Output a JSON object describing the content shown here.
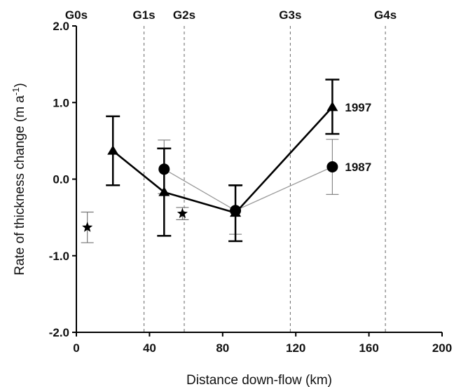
{
  "chart_data": {
    "type": "line",
    "title": "",
    "xlabel": "Distance down-flow (km)",
    "ylabel": "Rate of thickness change (m a",
    "ylabel_superscript": "-1",
    "ylabel_close": ")",
    "xlim": [
      0,
      200
    ],
    "ylim": [
      -2.0,
      2.0
    ],
    "xticks": [
      0,
      40,
      80,
      120,
      160,
      200
    ],
    "xtick_labels": [
      "0",
      "40",
      "80",
      "120",
      "160",
      "200"
    ],
    "yticks": [
      -2.0,
      -1.0,
      0.0,
      1.0,
      2.0
    ],
    "ytick_labels": [
      "-2.0",
      "-1.0",
      "0.0",
      "1.0",
      "2.0"
    ],
    "grid": false,
    "gates": [
      {
        "label": "G0s",
        "x": 0
      },
      {
        "label": "G1s",
        "x": 37
      },
      {
        "label": "G2s",
        "x": 59
      },
      {
        "label": "G3s",
        "x": 117
      },
      {
        "label": "G4s",
        "x": 169
      }
    ],
    "series": [
      {
        "name": "1997",
        "marker": "triangle",
        "color": "#000000",
        "x": [
          20,
          48,
          87,
          140
        ],
        "y": [
          0.37,
          -0.17,
          -0.44,
          0.94
        ],
        "err_low": [
          -0.08,
          -0.74,
          -0.81,
          0.59
        ],
        "err_high": [
          0.82,
          0.4,
          -0.08,
          1.3
        ]
      },
      {
        "name": "1987",
        "marker": "circle",
        "color": "#888888",
        "x": [
          48,
          87,
          140
        ],
        "y": [
          0.13,
          -0.41,
          0.16
        ],
        "err_low": [
          -0.19,
          -0.72,
          -0.2
        ],
        "err_high": [
          0.51,
          -0.09,
          0.52
        ]
      },
      {
        "name": "",
        "marker": "star",
        "color": "#000000",
        "x": [
          6,
          58
        ],
        "y": [
          -0.63,
          -0.45
        ],
        "err_low": [
          -0.83,
          -0.53
        ],
        "err_high": [
          -0.43,
          -0.37
        ]
      }
    ]
  }
}
